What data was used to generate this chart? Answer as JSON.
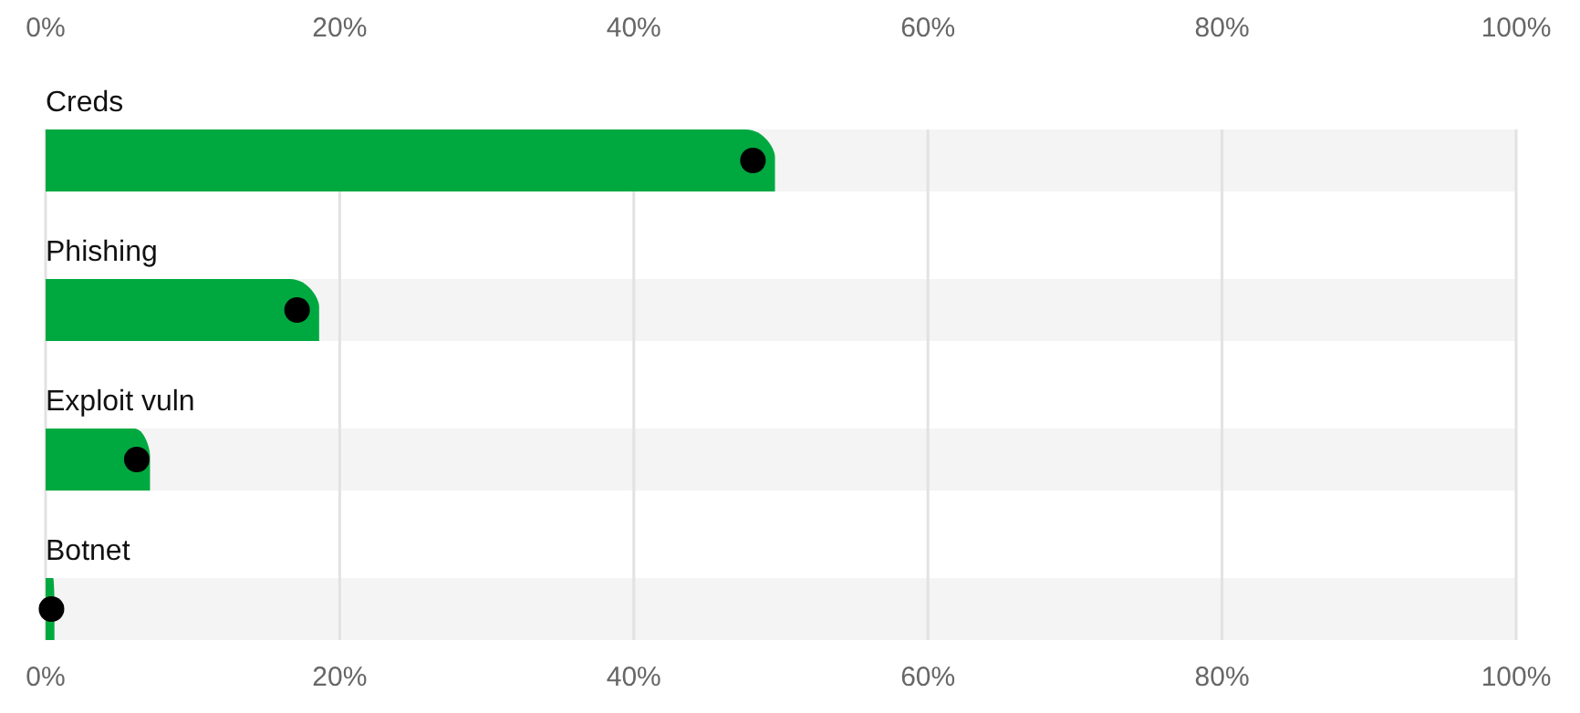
{
  "chart_data": {
    "type": "bar",
    "orientation": "horizontal",
    "categories": [
      "Creds",
      "Phishing",
      "Exploit vuln",
      "Botnet"
    ],
    "series": [
      {
        "color": "#00a940",
        "values": [
          49.6,
          18.6,
          7.1,
          0.6
        ]
      },
      {
        "type": "scatter",
        "color": "#000000",
        "x": [
          "Creds",
          "Phishing",
          "Exploit vuln",
          "Botnet"
        ],
        "values": [
          48.1,
          17.1,
          6.2,
          0.4
        ]
      }
    ],
    "xlim": [
      0,
      100
    ],
    "xticks": [
      {
        "value": 0,
        "label": "0%"
      },
      {
        "value": 20,
        "label": "20%"
      },
      {
        "value": 40,
        "label": "40%"
      },
      {
        "value": 60,
        "label": "60%"
      },
      {
        "value": 80,
        "label": "80%"
      },
      {
        "value": 100,
        "label": "100%"
      }
    ],
    "x2lim": [
      0,
      100
    ],
    "x2ticks": [
      {
        "value": 0,
        "label": "0%"
      },
      {
        "value": 20,
        "label": "20%"
      },
      {
        "value": 40,
        "label": "40%"
      },
      {
        "value": 60,
        "label": "60%"
      },
      {
        "value": 80,
        "label": "80%"
      },
      {
        "value": 100,
        "label": "100%"
      }
    ],
    "grid": "x",
    "marker": "circle"
  }
}
